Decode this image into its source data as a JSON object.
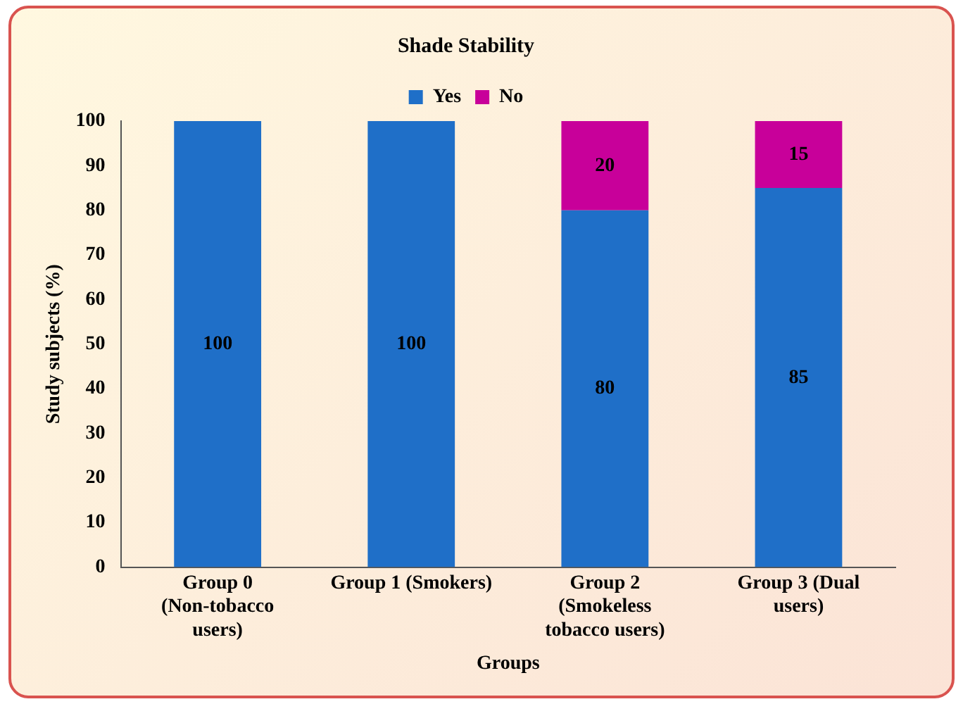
{
  "chart_data": {
    "type": "bar",
    "title": "Shade Stability",
    "xlabel": "Groups",
    "ylabel": "Study subjects (%)",
    "categories": [
      "Group 0 (Non-tobacco users)",
      "Group 1 (Smokers)",
      "Group 2 (Smokeless tobacco users)",
      "Group 3 (Dual users)"
    ],
    "series": [
      {
        "name": "Yes",
        "color": "#1f6fc8",
        "values": [
          100,
          100,
          80,
          85
        ],
        "value_labels": [
          "100",
          "100",
          "80",
          "85"
        ]
      },
      {
        "name": "No",
        "color": "#c8009a",
        "values": [
          0,
          0,
          20,
          15
        ],
        "value_labels": [
          null,
          null,
          "20",
          "15"
        ]
      }
    ],
    "stacked": true,
    "ylim": [
      0,
      100
    ],
    "yticks": [
      0,
      10,
      20,
      30,
      40,
      50,
      60,
      70,
      80,
      90,
      100
    ],
    "grid": false,
    "legend": "top"
  }
}
